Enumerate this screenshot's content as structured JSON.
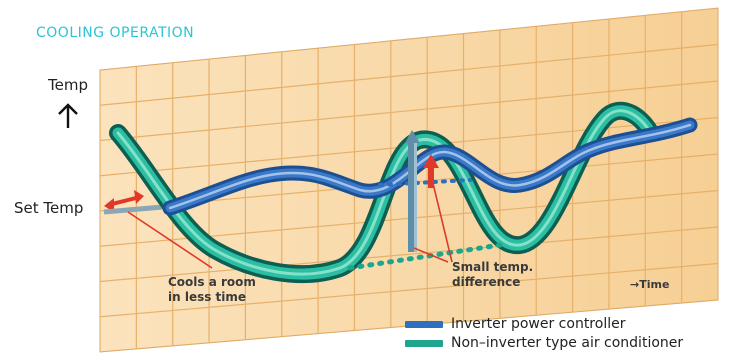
{
  "title": "COOLING OPERATION",
  "y_axis": {
    "temp_label": "Temp",
    "set_temp_label": "Set Temp"
  },
  "x_axis": {
    "time_label": "→Time"
  },
  "annotations": {
    "cools_line1": "Cools a room",
    "cools_line2": "in less time",
    "small_line1": "Small temp.",
    "small_line2": "difference"
  },
  "legend": [
    {
      "label": "Inverter power controller",
      "color": "#2f6fbf"
    },
    {
      "label": "Non–inverter type air conditioner",
      "color": "#1fa58e"
    }
  ],
  "colors": {
    "accent": "#2ec4d6",
    "board": "#f9d7a3",
    "grid": "#e7b06a",
    "inverter": "#2f6fbf",
    "non_inverter": "#1fa58e",
    "arrow_red": "#e0392a"
  }
}
